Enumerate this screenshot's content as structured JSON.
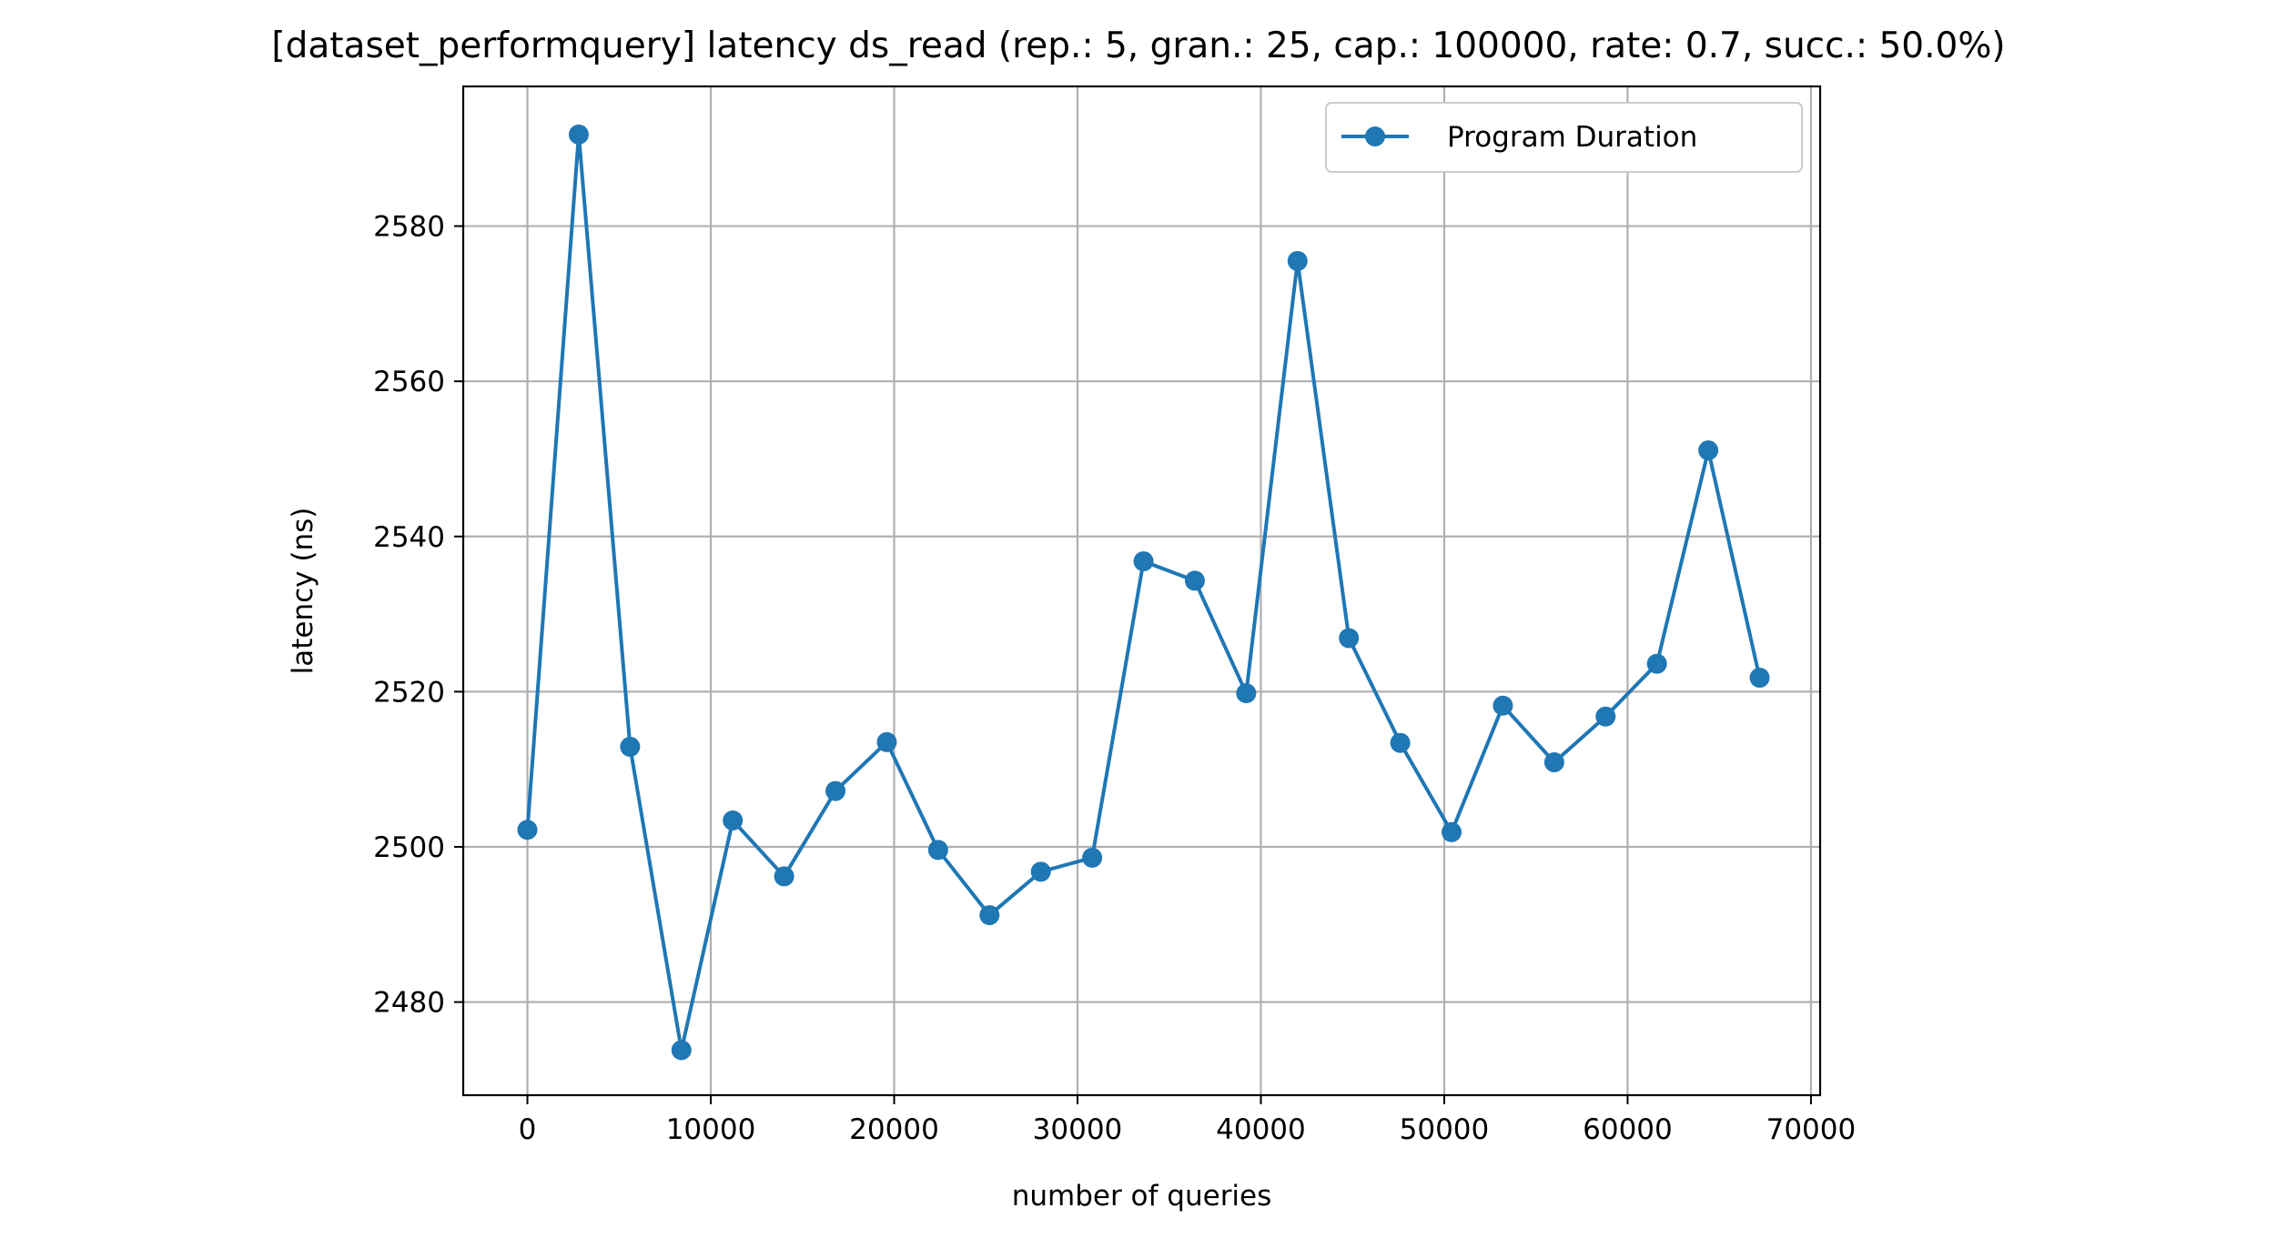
{
  "chart_data": {
    "type": "line",
    "title": "[dataset_performquery] latency ds_read (rep.: 5, gran.: 25, cap.: 100000, rate: 0.7, succ.: 50.0%)",
    "xlabel": "number of queries",
    "ylabel": "latency (ns)",
    "xlim": [
      -3500,
      70500
    ],
    "ylim": [
      2468,
      2598
    ],
    "xticks": [
      0,
      10000,
      20000,
      30000,
      40000,
      50000,
      60000,
      70000
    ],
    "yticks": [
      2480,
      2500,
      2520,
      2540,
      2560,
      2580
    ],
    "grid": true,
    "legend_position": "upper right",
    "series": [
      {
        "name": "Program Duration",
        "color": "#1f77b4",
        "marker": "circle",
        "x": [
          0,
          2800,
          5600,
          8400,
          11200,
          14000,
          16800,
          19600,
          22400,
          25200,
          28000,
          30800,
          33600,
          36400,
          39200,
          42000,
          44800,
          47600,
          50400,
          53200,
          56000,
          58800,
          61600,
          64400,
          67200
        ],
        "y": [
          2502.2,
          2591.8,
          2512.9,
          2473.8,
          2503.4,
          2496.2,
          2507.2,
          2513.5,
          2499.6,
          2491.2,
          2496.8,
          2498.6,
          2536.8,
          2534.3,
          2519.8,
          2575.5,
          2526.9,
          2513.4,
          2501.9,
          2518.2,
          2510.9,
          2516.8,
          2523.6,
          2551.1,
          2521.8
        ]
      }
    ]
  }
}
